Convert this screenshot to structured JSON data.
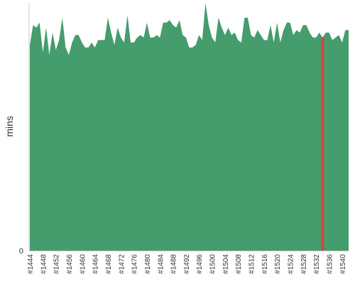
{
  "chart_data": {
    "type": "area",
    "ylabel": "mins",
    "ytick_labels": [
      "0"
    ],
    "ylim": [
      0,
      100
    ],
    "x": [
      "#1444",
      "#1445",
      "#1446",
      "#1447",
      "#1448",
      "#1449",
      "#1450",
      "#1451",
      "#1452",
      "#1453",
      "#1454",
      "#1455",
      "#1456",
      "#1457",
      "#1458",
      "#1459",
      "#1460",
      "#1461",
      "#1462",
      "#1463",
      "#1464",
      "#1465",
      "#1466",
      "#1467",
      "#1468",
      "#1469",
      "#1470",
      "#1471",
      "#1472",
      "#1473",
      "#1474",
      "#1475",
      "#1476",
      "#1477",
      "#1478",
      "#1479",
      "#1480",
      "#1481",
      "#1482",
      "#1483",
      "#1484",
      "#1485",
      "#1486",
      "#1487",
      "#1488",
      "#1489",
      "#1490",
      "#1491",
      "#1492",
      "#1493",
      "#1494",
      "#1495",
      "#1496",
      "#1497",
      "#1498",
      "#1499",
      "#1500",
      "#1501",
      "#1502",
      "#1503",
      "#1504",
      "#1505",
      "#1506",
      "#1507",
      "#1508",
      "#1509",
      "#1510",
      "#1511",
      "#1512",
      "#1513",
      "#1514",
      "#1515",
      "#1516",
      "#1517",
      "#1518",
      "#1519",
      "#1520",
      "#1521",
      "#1522",
      "#1523",
      "#1524",
      "#1525",
      "#1526",
      "#1527",
      "#1528",
      "#1529",
      "#1530",
      "#1531",
      "#1532",
      "#1533",
      "#1534",
      "#1535",
      "#1536",
      "#1537",
      "#1538",
      "#1539",
      "#1540",
      "#1541",
      "#1542"
    ],
    "xtick_labels": [
      "#1444",
      "#1448",
      "#1452",
      "#1456",
      "#1460",
      "#1464",
      "#1468",
      "#1472",
      "#1476",
      "#1480",
      "#1484",
      "#1488",
      "#1492",
      "#1496",
      "#1500",
      "#1504",
      "#1508",
      "#1512",
      "#1516",
      "#1520",
      "#1524",
      "#1528",
      "#1532",
      "#1536",
      "#1540"
    ],
    "values": [
      83,
      91,
      90,
      92,
      80,
      90,
      79,
      88,
      81,
      85,
      94,
      82,
      79,
      84,
      87,
      87,
      84,
      82,
      82,
      84,
      82,
      85,
      85,
      85,
      94,
      88,
      83,
      90,
      86,
      84,
      95,
      84,
      84,
      86,
      87,
      86,
      92,
      86,
      86,
      87,
      86,
      92,
      92,
      93,
      91,
      90,
      93,
      87,
      86,
      82,
      82,
      83,
      87,
      85,
      100,
      91,
      86,
      84,
      94,
      90,
      87,
      90,
      87,
      88,
      85,
      84,
      94,
      94,
      87,
      86,
      89,
      87,
      85,
      85,
      91,
      84,
      92,
      84,
      89,
      92,
      92,
      87,
      89,
      88,
      91,
      91,
      88,
      86,
      86,
      88,
      86,
      88,
      88,
      85,
      86,
      87,
      84,
      89,
      89
    ],
    "highlight": {
      "x": "#1534",
      "color": "#d9443a"
    },
    "colors": {
      "area": "#459c6c",
      "axis": "#c8c8c8",
      "text": "#333333"
    },
    "grid": false,
    "legend": "none"
  }
}
